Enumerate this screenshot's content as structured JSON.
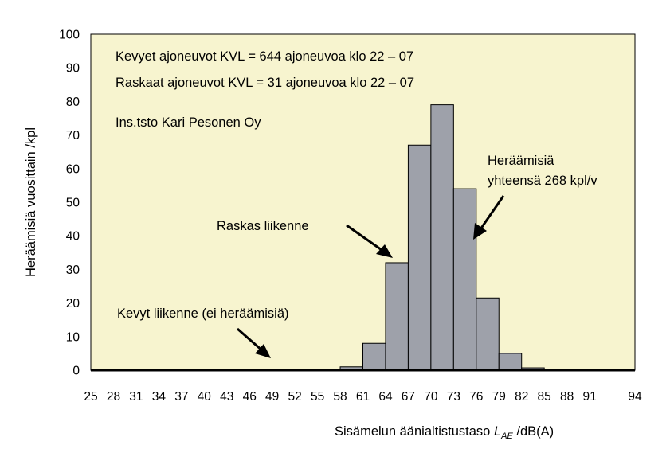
{
  "chart_data": {
    "type": "bar",
    "title": "",
    "ylabel": "Heräämisiä vuosittain /kpl",
    "xlabel": {
      "prefix": "Sisämelun äänialtistustaso ",
      "symbol": "L",
      "subscript": "AE",
      "suffix": " /dB(A)"
    },
    "ylim": [
      0,
      100
    ],
    "yticks": [
      "0",
      "10",
      "20",
      "30",
      "40",
      "50",
      "60",
      "70",
      "80",
      "90",
      "100"
    ],
    "grid": false,
    "bar_color": "#9ea1aa",
    "background": "#f7f4cf",
    "categories": [
      "25",
      "28",
      "31",
      "34",
      "37",
      "40",
      "43",
      "46",
      "49",
      "52",
      "55",
      "58",
      "61",
      "64",
      "67",
      "70",
      "73",
      "76",
      "79",
      "82",
      "85",
      "88",
      "91",
      "94"
    ],
    "values": [
      0,
      0,
      0,
      0,
      0,
      0,
      0,
      0,
      0,
      0,
      0,
      1,
      8,
      32,
      67,
      79,
      54,
      21.5,
      5,
      0.7,
      0,
      0,
      0,
      0
    ],
    "annotations": {
      "info_line_1": "Kevyet ajoneuvot KVL = 644 ajoneuvoa klo 22 – 07",
      "info_line_2": "Raskaat ajoneuvot KVL = 31 ajoneuvoa klo 22 – 07",
      "info_line_3": "Ins.tsto Kari Pesonen Oy",
      "heavy_traffic": "Raskas liikenne",
      "light_traffic": "Kevyt liikenne (ei heräämisiä)",
      "total_line_1": "Heräämisiä",
      "total_line_2": "yhteensä 268 kpl/v"
    }
  }
}
